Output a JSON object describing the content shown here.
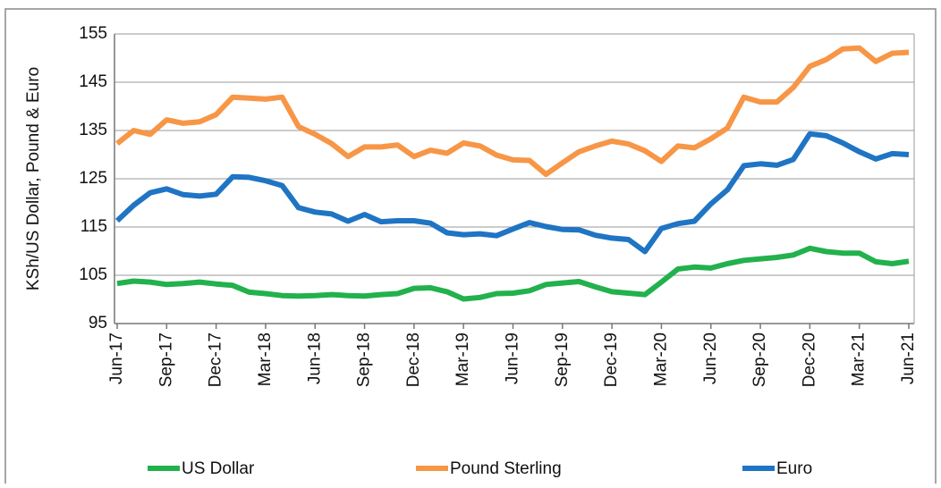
{
  "chart_data": {
    "type": "line",
    "y_label": "KSh/US Dollar, Pound & Euro",
    "categories": [
      "Jun-17",
      null,
      null,
      "Sep-17",
      null,
      null,
      "Dec-17",
      null,
      null,
      "Mar-18",
      null,
      null,
      "Jun-18",
      null,
      null,
      "Sep-18",
      null,
      null,
      "Dec-18",
      null,
      null,
      "Mar-19",
      null,
      null,
      "Jun-19",
      null,
      null,
      "Sep-19",
      null,
      null,
      "Dec-19",
      null,
      null,
      "Mar-20",
      null,
      null,
      "Jun-20",
      null,
      null,
      "Sep-20",
      null,
      null,
      "Dec-20",
      null,
      null,
      "Mar-21",
      null,
      null,
      "Jun-21"
    ],
    "series": [
      {
        "name": "US Dollar",
        "color": "#22b14c",
        "values": [
          103.3,
          103.8,
          103.6,
          103.1,
          103.3,
          103.6,
          103.2,
          102.9,
          101.5,
          101.2,
          100.8,
          100.7,
          100.8,
          101.0,
          100.8,
          100.7,
          101.0,
          101.2,
          102.3,
          102.4,
          101.6,
          100.1,
          100.4,
          101.2,
          101.3,
          101.8,
          103.1,
          103.4,
          103.7,
          102.6,
          101.6,
          101.3,
          101.0,
          103.6,
          106.3,
          106.7,
          106.5,
          107.4,
          108.1,
          108.4,
          108.7,
          109.2,
          110.6,
          109.9,
          109.6,
          109.6,
          107.8,
          107.4,
          107.9
        ]
      },
      {
        "name": "Pound Sterling",
        "color": "#f79646",
        "values": [
          132.3,
          135.0,
          134.2,
          137.2,
          136.5,
          136.8,
          138.3,
          141.9,
          141.7,
          141.5,
          141.9,
          135.8,
          134.2,
          132.3,
          129.6,
          131.6,
          131.6,
          132.0,
          129.6,
          130.9,
          130.3,
          132.4,
          131.8,
          129.9,
          128.9,
          128.8,
          125.9,
          128.3,
          130.6,
          131.8,
          132.8,
          132.2,
          130.8,
          128.6,
          131.8,
          131.4,
          133.3,
          135.5,
          141.9,
          140.9,
          140.9,
          143.9,
          148.3,
          149.7,
          151.9,
          152.1,
          149.3,
          151.0,
          151.2
        ]
      },
      {
        "name": "Euro",
        "color": "#1f74c4",
        "values": [
          116.3,
          119.5,
          122.1,
          122.9,
          121.7,
          121.4,
          121.8,
          125.4,
          125.3,
          124.6,
          123.6,
          119.0,
          118.1,
          117.7,
          116.2,
          117.6,
          116.1,
          116.3,
          116.3,
          115.8,
          113.8,
          113.4,
          113.6,
          113.2,
          114.6,
          115.9,
          115.1,
          114.5,
          114.4,
          113.3,
          112.7,
          112.4,
          109.9,
          114.7,
          115.7,
          116.2,
          119.8,
          122.7,
          127.7,
          128.1,
          127.8,
          129.0,
          134.3,
          133.9,
          132.4,
          130.6,
          129.1,
          130.2,
          130.0
        ]
      }
    ],
    "ylim": [
      95,
      155
    ],
    "yticks": [
      95,
      105,
      115,
      125,
      135,
      145,
      155
    ],
    "grid": true,
    "legend": "bottom"
  }
}
